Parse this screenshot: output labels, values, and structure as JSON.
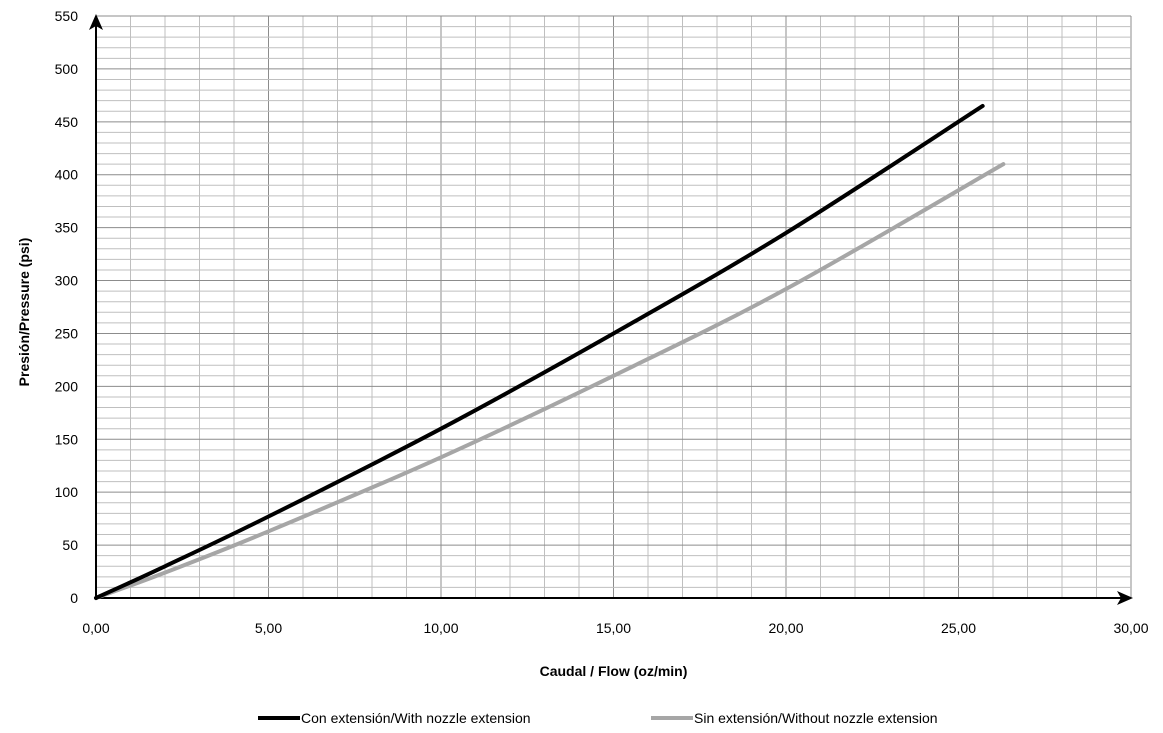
{
  "chart_data": {
    "type": "line",
    "title": "",
    "xlabel": "Caudal / Flow  (oz/min)",
    "ylabel": "Presión/Pressure (psi)",
    "xlim": [
      0,
      30
    ],
    "ylim": [
      0,
      550
    ],
    "x_ticks": [
      "0,00",
      "5,00",
      "10,00",
      "15,00",
      "20,00",
      "25,00",
      "30,00"
    ],
    "y_ticks": [
      "0",
      "50",
      "100",
      "150",
      "200",
      "250",
      "300",
      "350",
      "400",
      "450",
      "500",
      "550"
    ],
    "grid": true,
    "legend_position": "bottom",
    "series": [
      {
        "name": "Con extensión/With nozzle extension",
        "color": "#000000",
        "x": [
          0,
          2,
          5,
          10,
          15,
          20,
          25.7
        ],
        "y": [
          0,
          30,
          77,
          160,
          250,
          345,
          465
        ]
      },
      {
        "name": "Sin extensión/Without nozzle extension",
        "color": "#a6a6a6",
        "x": [
          0,
          2,
          5,
          10,
          15,
          20,
          26.3
        ],
        "y": [
          0,
          24,
          63,
          133,
          210,
          292,
          410
        ]
      }
    ]
  }
}
